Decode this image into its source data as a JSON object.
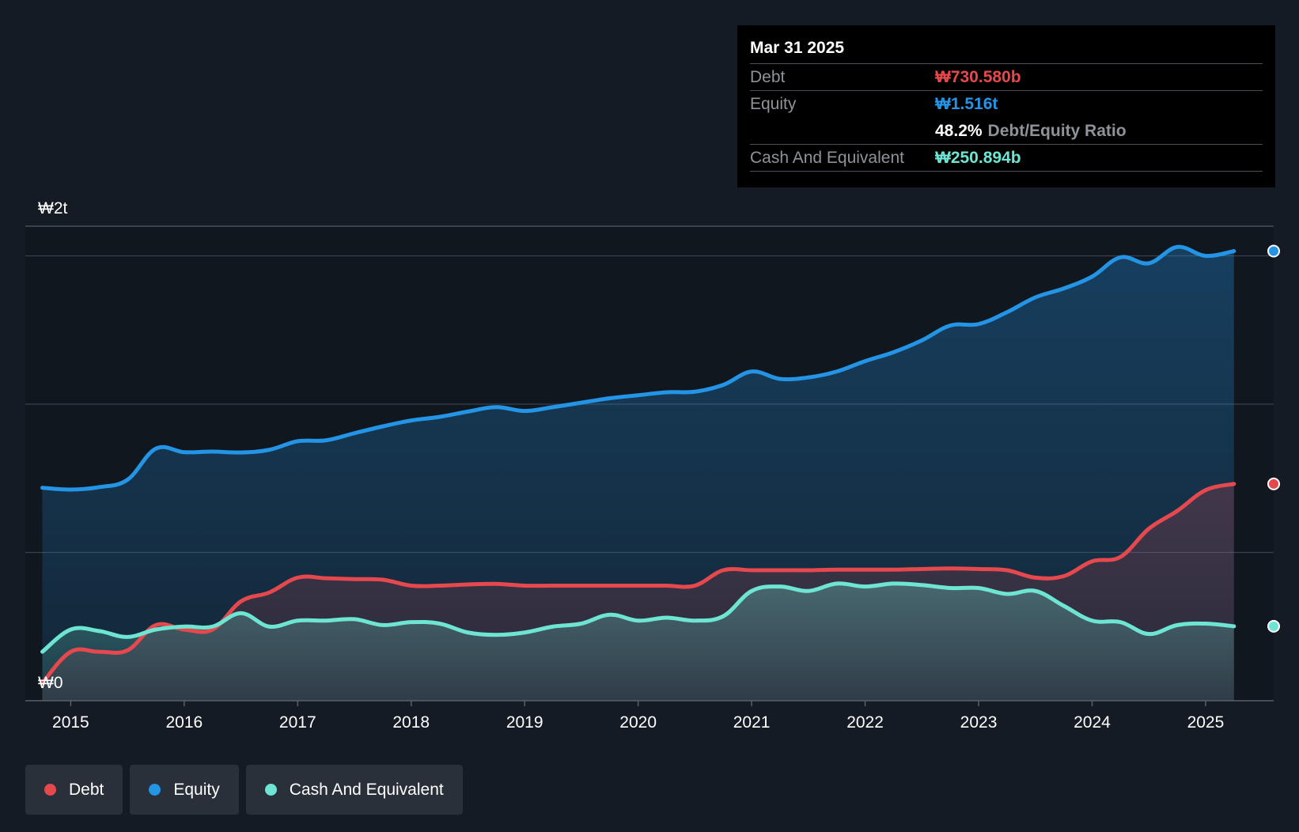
{
  "tooltip": {
    "date": "Mar 31 2025",
    "debt_label": "Debt",
    "debt_value": "₩730.580b",
    "equity_label": "Equity",
    "equity_value": "₩1.516t",
    "ratio_value": "48.2%",
    "ratio_label": "Debt/Equity Ratio",
    "cash_label": "Cash And Equivalent",
    "cash_value": "₩250.894b"
  },
  "legend": [
    {
      "label": "Debt",
      "color": "#e5484d"
    },
    {
      "label": "Equity",
      "color": "#2394e6"
    },
    {
      "label": "Cash And Equivalent",
      "color": "#6ee5d2"
    }
  ],
  "colors": {
    "debt": "#e5484d",
    "equity": "#2394e6",
    "cash": "#6ee5d2",
    "background": "#151b24"
  },
  "chart_data": {
    "type": "area",
    "y_tick_labels": [
      "₩0",
      "₩2t"
    ],
    "ylim": [
      0,
      1.6
    ],
    "x_ticks": [
      2015,
      2016,
      2017,
      2018,
      2019,
      2020,
      2021,
      2022,
      2023,
      2024,
      2025
    ],
    "x_tick_labels": [
      "2015",
      "2016",
      "2017",
      "2018",
      "2019",
      "2020",
      "2021",
      "2022",
      "2023",
      "2024",
      "2025"
    ],
    "xlim": [
      2014.6,
      2025.6
    ],
    "gridlines": [
      0.5,
      1.0,
      1.5
    ],
    "series": [
      {
        "name": "Equity",
        "key": "equity",
        "x": [
          2014.75,
          2015.0,
          2015.25,
          2015.5,
          2015.75,
          2016.0,
          2016.25,
          2016.5,
          2016.75,
          2017.0,
          2017.25,
          2017.5,
          2017.75,
          2018.0,
          2018.25,
          2018.5,
          2018.75,
          2019.0,
          2019.25,
          2019.5,
          2019.75,
          2020.0,
          2020.25,
          2020.5,
          2020.75,
          2021.0,
          2021.25,
          2021.5,
          2021.75,
          2022.0,
          2022.25,
          2022.5,
          2022.75,
          2023.0,
          2023.25,
          2023.5,
          2023.75,
          2024.0,
          2024.25,
          2024.5,
          2024.75,
          2025.0,
          2025.25
        ],
        "y": [
          0.718,
          0.712,
          0.72,
          0.745,
          0.85,
          0.838,
          0.84,
          0.837,
          0.846,
          0.875,
          0.878,
          0.902,
          0.925,
          0.945,
          0.957,
          0.975,
          0.99,
          0.977,
          0.99,
          1.005,
          1.02,
          1.03,
          1.04,
          1.042,
          1.065,
          1.11,
          1.085,
          1.09,
          1.11,
          1.145,
          1.175,
          1.215,
          1.265,
          1.27,
          1.31,
          1.36,
          1.39,
          1.43,
          1.495,
          1.475,
          1.53,
          1.5,
          1.516
        ]
      },
      {
        "name": "Debt",
        "key": "debt",
        "x": [
          2014.75,
          2015.0,
          2015.25,
          2015.5,
          2015.75,
          2016.0,
          2016.25,
          2016.5,
          2016.75,
          2017.0,
          2017.25,
          2017.5,
          2017.75,
          2018.0,
          2018.25,
          2018.5,
          2018.75,
          2019.0,
          2019.25,
          2019.5,
          2019.75,
          2020.0,
          2020.25,
          2020.5,
          2020.75,
          2021.0,
          2021.25,
          2021.5,
          2021.75,
          2022.0,
          2022.25,
          2022.5,
          2022.75,
          2023.0,
          2023.25,
          2023.5,
          2023.75,
          2024.0,
          2024.25,
          2024.5,
          2024.75,
          2025.0,
          2025.25
        ],
        "y": [
          0.06,
          0.165,
          0.165,
          0.17,
          0.255,
          0.24,
          0.24,
          0.335,
          0.365,
          0.415,
          0.413,
          0.41,
          0.408,
          0.388,
          0.388,
          0.392,
          0.394,
          0.388,
          0.388,
          0.388,
          0.388,
          0.388,
          0.388,
          0.388,
          0.44,
          0.44,
          0.44,
          0.44,
          0.442,
          0.442,
          0.442,
          0.444,
          0.446,
          0.444,
          0.44,
          0.415,
          0.42,
          0.47,
          0.485,
          0.58,
          0.64,
          0.71,
          0.731
        ]
      },
      {
        "name": "Cash And Equivalent",
        "key": "cash",
        "x": [
          2014.75,
          2015.0,
          2015.25,
          2015.5,
          2015.75,
          2016.0,
          2016.25,
          2016.5,
          2016.75,
          2017.0,
          2017.25,
          2017.5,
          2017.75,
          2018.0,
          2018.25,
          2018.5,
          2018.75,
          2019.0,
          2019.25,
          2019.5,
          2019.75,
          2020.0,
          2020.25,
          2020.5,
          2020.75,
          2021.0,
          2021.25,
          2021.5,
          2021.75,
          2022.0,
          2022.25,
          2022.5,
          2022.75,
          2023.0,
          2023.25,
          2023.5,
          2023.75,
          2024.0,
          2024.25,
          2024.5,
          2024.75,
          2025.0,
          2025.25
        ],
        "y": [
          0.165,
          0.24,
          0.235,
          0.215,
          0.24,
          0.25,
          0.25,
          0.295,
          0.25,
          0.27,
          0.27,
          0.275,
          0.255,
          0.265,
          0.26,
          0.23,
          0.222,
          0.23,
          0.25,
          0.26,
          0.29,
          0.27,
          0.28,
          0.27,
          0.285,
          0.37,
          0.385,
          0.37,
          0.395,
          0.385,
          0.395,
          0.39,
          0.38,
          0.38,
          0.36,
          0.37,
          0.32,
          0.27,
          0.265,
          0.225,
          0.255,
          0.26,
          0.251
        ]
      }
    ]
  }
}
